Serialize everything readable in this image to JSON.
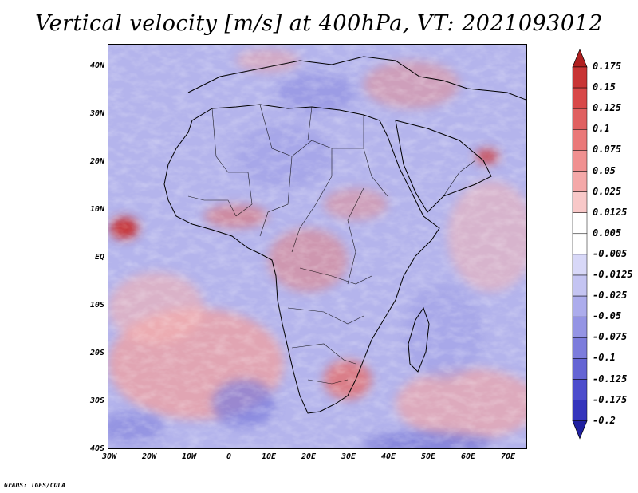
{
  "title": "Vertical velocity [m/s] at 400hPa, VT: 2021093012",
  "credit": "GrADS: IGES/COLA",
  "map": {
    "variable": "Vertical velocity",
    "units": "m/s",
    "level": "400hPa",
    "valid_time": "2021093012",
    "lat_labels": [
      "40N",
      "30N",
      "20N",
      "10N",
      "EQ",
      "10S",
      "20S",
      "30S",
      "40S"
    ],
    "lon_labels": [
      "30W",
      "20W",
      "10W",
      "0",
      "10E",
      "20E",
      "30E",
      "40E",
      "50E",
      "60E",
      "70E"
    ],
    "background_color": "#b8b8ee"
  },
  "legend": {
    "levels": [
      "0.175",
      "0.15",
      "0.125",
      "0.1",
      "0.075",
      "0.05",
      "0.025",
      "0.0125",
      "0.005",
      "-0.005",
      "-0.0125",
      "-0.025",
      "-0.05",
      "-0.075",
      "-0.1",
      "-0.125",
      "-0.175",
      "-0.2"
    ],
    "colors": [
      "#b02020",
      "#c83434",
      "#d84848",
      "#e06060",
      "#ea7878",
      "#f09090",
      "#f4a8a8",
      "#f8c8c8",
      "#ffffff",
      "#ffffff",
      "#d8d8f8",
      "#c4c4f2",
      "#acacec",
      "#9494e4",
      "#7c7cdc",
      "#6464d4",
      "#4c4ccc",
      "#3434bc",
      "#2020a0"
    ]
  }
}
